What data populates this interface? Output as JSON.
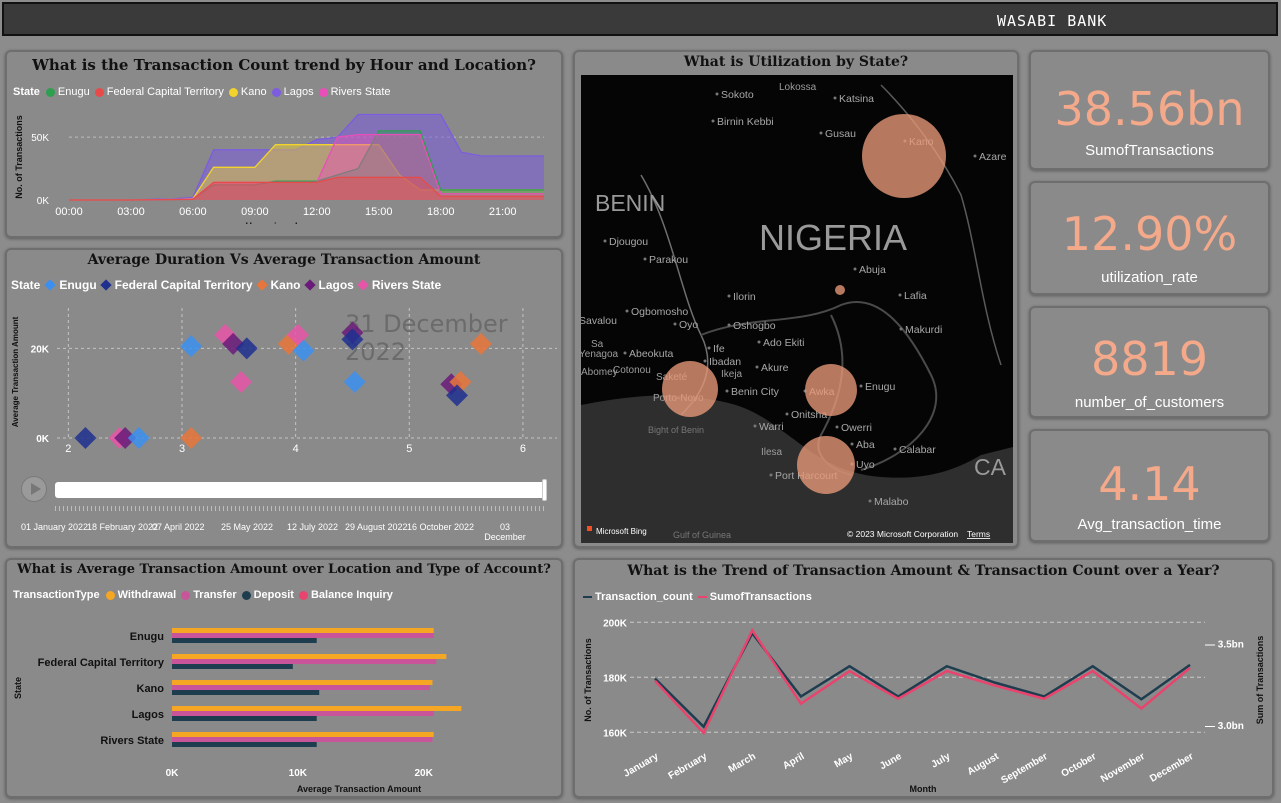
{
  "app": {
    "brand": "WASABI BANK"
  },
  "panel1": {
    "title": "What is the Transaction Count trend by Hour and Location?",
    "legend_label": "State",
    "legend": [
      {
        "name": "Enugu",
        "color": "#2e9e4f"
      },
      {
        "name": "Federal Capital Territory",
        "color": "#e84a4a"
      },
      {
        "name": "Kano",
        "color": "#f2d32c"
      },
      {
        "name": "Lagos",
        "color": "#7c5ce0"
      },
      {
        "name": "Rivers State",
        "color": "#e84fb8"
      }
    ]
  },
  "panel2": {
    "title": "Average Duration Vs Average Transaction Amount",
    "legend_label": "State",
    "legend": [
      {
        "name": "Enugu",
        "color": "#3b8ff0"
      },
      {
        "name": "Federal Capital Territory",
        "color": "#1f2f8f"
      },
      {
        "name": "Kano",
        "color": "#e8763a"
      },
      {
        "name": "Lagos",
        "color": "#6a1b7a"
      },
      {
        "name": "Rivers State",
        "color": "#e855a8"
      }
    ],
    "watermark": "31 December 2022",
    "timeline_labels": [
      "01 January 2022",
      "18 February 2022",
      "07 April 2022",
      "25 May 2022",
      "12 July 2022",
      "29 August 2022",
      "16 October 2022",
      "03 December"
    ]
  },
  "panel3": {
    "title": "What is Average Transaction Amount over Location and Type of Account?",
    "legend_label": "TransactionType",
    "legend": [
      {
        "name": "Withdrawal",
        "color": "#f5a623"
      },
      {
        "name": "Transfer",
        "color": "#c8559a"
      },
      {
        "name": "Deposit",
        "color": "#1e3d4f"
      },
      {
        "name": "Balance Inquiry",
        "color": "#e8446e"
      }
    ]
  },
  "panel4": {
    "title": "What is Utilization by State?",
    "country_label": "NIGERIA",
    "neighbor_labels": [
      "BENIN",
      "CA"
    ],
    "city_labels": [
      "Sokoto",
      "Katsina",
      "Birnin Kebbi",
      "Gusau",
      "Kano",
      "Azare",
      "Djougou",
      "Parakou",
      "Abuja",
      "Lafia",
      "Ilorin",
      "Ogbomosho",
      "Oyo",
      "Oshogbo",
      "Makurdi",
      "Savalou",
      "Abeokuta",
      "Ife",
      "Ado Ekiti",
      "Ibadan",
      "Akure",
      "Benin City",
      "Awka",
      "Enugu",
      "Onitsha",
      "Warri",
      "Owerri",
      "Aba",
      "Port Harcourt",
      "Calabar",
      "Uyo",
      "Malabo",
      "Bight of Benin",
      "Gulf of Guinea",
      "Porto-Novo",
      "Cotonou",
      "Saketé",
      "Ikeja",
      "Ilesa",
      "Yenagoa",
      "Abomey",
      "Lokossa",
      "Sa",
      "Zi"
    ],
    "attribution_left": "Microsoft Bing",
    "attribution_right": "© 2023 Microsoft Corporation",
    "terms": "Terms"
  },
  "panel5": {
    "title": "What is the Trend of Transaction Amount & Transaction Count over a Year?",
    "legend": [
      {
        "name": "Transaction_count",
        "color": "#1e3d4f"
      },
      {
        "name": "SumofTransactions",
        "color": "#e8446e"
      }
    ]
  },
  "kpis": [
    {
      "value": "38.56bn",
      "label": "SumofTransactions"
    },
    {
      "value": "12.90%",
      "label": "utilization_rate"
    },
    {
      "value": "8819",
      "label": "number_of_customers"
    },
    {
      "value": "4.14",
      "label": "Avg_transaction_time"
    }
  ],
  "chart_data": [
    {
      "type": "area",
      "xlabel": "Hours in a day",
      "ylabel": "No. of Transactions",
      "x_tick_labels": [
        "00:00",
        "03:00",
        "06:00",
        "09:00",
        "12:00",
        "15:00",
        "18:00",
        "21:00"
      ],
      "y_tick_labels": [
        "0K",
        "50K"
      ],
      "ylim": [
        0,
        70000
      ],
      "x": [
        0,
        1,
        2,
        3,
        4,
        5,
        6,
        7,
        8,
        9,
        10,
        11,
        12,
        13,
        14,
        15,
        16,
        17,
        18,
        19,
        20,
        21,
        22,
        23
      ],
      "series": [
        {
          "name": "Lagos",
          "values": [
            0,
            0,
            0,
            0,
            500,
            1000,
            2000,
            40000,
            40000,
            40000,
            40000,
            40000,
            48000,
            50000,
            68000,
            68000,
            68000,
            68000,
            68000,
            38000,
            35000,
            35000,
            35000,
            35000
          ]
        },
        {
          "name": "Kano",
          "values": [
            0,
            0,
            0,
            0,
            200,
            500,
            1000,
            26000,
            26000,
            26000,
            44000,
            44000,
            44000,
            44000,
            44000,
            44000,
            20000,
            8000,
            8000,
            8000,
            8000,
            8000,
            8000,
            8000
          ]
        },
        {
          "name": "Enugu",
          "values": [
            0,
            0,
            0,
            0,
            200,
            400,
            800,
            12000,
            12000,
            12000,
            15000,
            15000,
            15000,
            20000,
            25000,
            55000,
            55000,
            55000,
            8000,
            8000,
            8000,
            8000,
            8000,
            8000
          ]
        },
        {
          "name": "Rivers State",
          "values": [
            0,
            0,
            0,
            0,
            200,
            400,
            800,
            14000,
            14000,
            14000,
            14000,
            14000,
            14000,
            50000,
            52000,
            52000,
            52000,
            52000,
            5000,
            5000,
            5000,
            5000,
            5000,
            5000
          ]
        },
        {
          "name": "Federal Capital Territory",
          "values": [
            0,
            0,
            0,
            0,
            200,
            300,
            500,
            14000,
            14000,
            14000,
            14000,
            14000,
            14000,
            18000,
            18000,
            18000,
            18000,
            18000,
            3000,
            3000,
            3000,
            3000,
            3000,
            3000
          ]
        }
      ]
    },
    {
      "type": "scatter",
      "xlabel": "Time per transactions",
      "ylabel": "Average Transaction Amount",
      "x_ticks": [
        2,
        3,
        4,
        5,
        6
      ],
      "y_tick_labels": [
        "0K",
        "20K"
      ],
      "xlim": [
        1.9,
        6.3
      ],
      "ylim": [
        0,
        29000
      ],
      "points": [
        {
          "series": "Federal Capital Territory",
          "x": 2.15,
          "y": 0
        },
        {
          "series": "Rivers State",
          "x": 2.45,
          "y": 0
        },
        {
          "series": "Lagos",
          "x": 2.5,
          "y": 0
        },
        {
          "series": "Enugu",
          "x": 2.62,
          "y": 0
        },
        {
          "series": "Kano",
          "x": 3.08,
          "y": 0
        },
        {
          "series": "Enugu",
          "x": 3.08,
          "y": 20500
        },
        {
          "series": "Rivers State",
          "x": 3.38,
          "y": 23000
        },
        {
          "series": "Lagos",
          "x": 3.45,
          "y": 21000
        },
        {
          "series": "Federal Capital Territory",
          "x": 3.57,
          "y": 20000
        },
        {
          "series": "Rivers State",
          "x": 3.52,
          "y": 12500
        },
        {
          "series": "Kano",
          "x": 3.94,
          "y": 21000
        },
        {
          "series": "Rivers State",
          "x": 4.02,
          "y": 23000
        },
        {
          "series": "Enugu",
          "x": 4.07,
          "y": 19500
        },
        {
          "series": "Lagos",
          "x": 4.5,
          "y": 23500
        },
        {
          "series": "Federal Capital Territory",
          "x": 4.5,
          "y": 22000
        },
        {
          "series": "Enugu",
          "x": 4.52,
          "y": 12500
        },
        {
          "series": "Lagos",
          "x": 5.37,
          "y": 12000
        },
        {
          "series": "Kano",
          "x": 5.45,
          "y": 12500
        },
        {
          "series": "Federal Capital Territory",
          "x": 5.42,
          "y": 9500
        },
        {
          "series": "Kano",
          "x": 5.63,
          "y": 21000
        }
      ]
    },
    {
      "type": "bar",
      "orientation": "horizontal",
      "xlabel": "Average Transaction Amount",
      "ylabel": "State",
      "categories": [
        "Enugu",
        "Federal Capital Territory",
        "Kano",
        "Lagos",
        "Rivers State"
      ],
      "x_tick_labels": [
        "0K",
        "10K",
        "20K"
      ],
      "xlim": [
        0,
        24000
      ],
      "series": [
        {
          "name": "Withdrawal",
          "values": [
            20800,
            21800,
            20700,
            23000,
            20800
          ]
        },
        {
          "name": "Transfer",
          "values": [
            20800,
            21000,
            20500,
            20800,
            20700
          ]
        },
        {
          "name": "Deposit",
          "values": [
            11500,
            9600,
            11700,
            11500,
            11500
          ]
        }
      ]
    },
    {
      "type": "line",
      "xlabel": "Month",
      "ylabel": "No. of Transactions",
      "y2label": "Sum of Transactions",
      "categories": [
        "January",
        "February",
        "March",
        "April",
        "May",
        "June",
        "July",
        "August",
        "September",
        "October",
        "November",
        "December"
      ],
      "y_tick_labels": [
        "160K",
        "180K",
        "200K"
      ],
      "y2_tick_labels": [
        "3.0bn",
        "3.5bn"
      ],
      "ylim": [
        155000,
        203000
      ],
      "series": [
        {
          "name": "Transaction_count",
          "values": [
            179500,
            162000,
            196000,
            173000,
            184000,
            173000,
            184000,
            178000,
            173000,
            184000,
            172000,
            184500
          ]
        },
        {
          "name": "SumofTransactions",
          "values": [
            3.27,
            2.95,
            3.58,
            3.13,
            3.33,
            3.16,
            3.33,
            3.24,
            3.16,
            3.33,
            3.1,
            3.35
          ]
        }
      ],
      "y2lim": [
        2.87,
        3.68
      ]
    }
  ]
}
